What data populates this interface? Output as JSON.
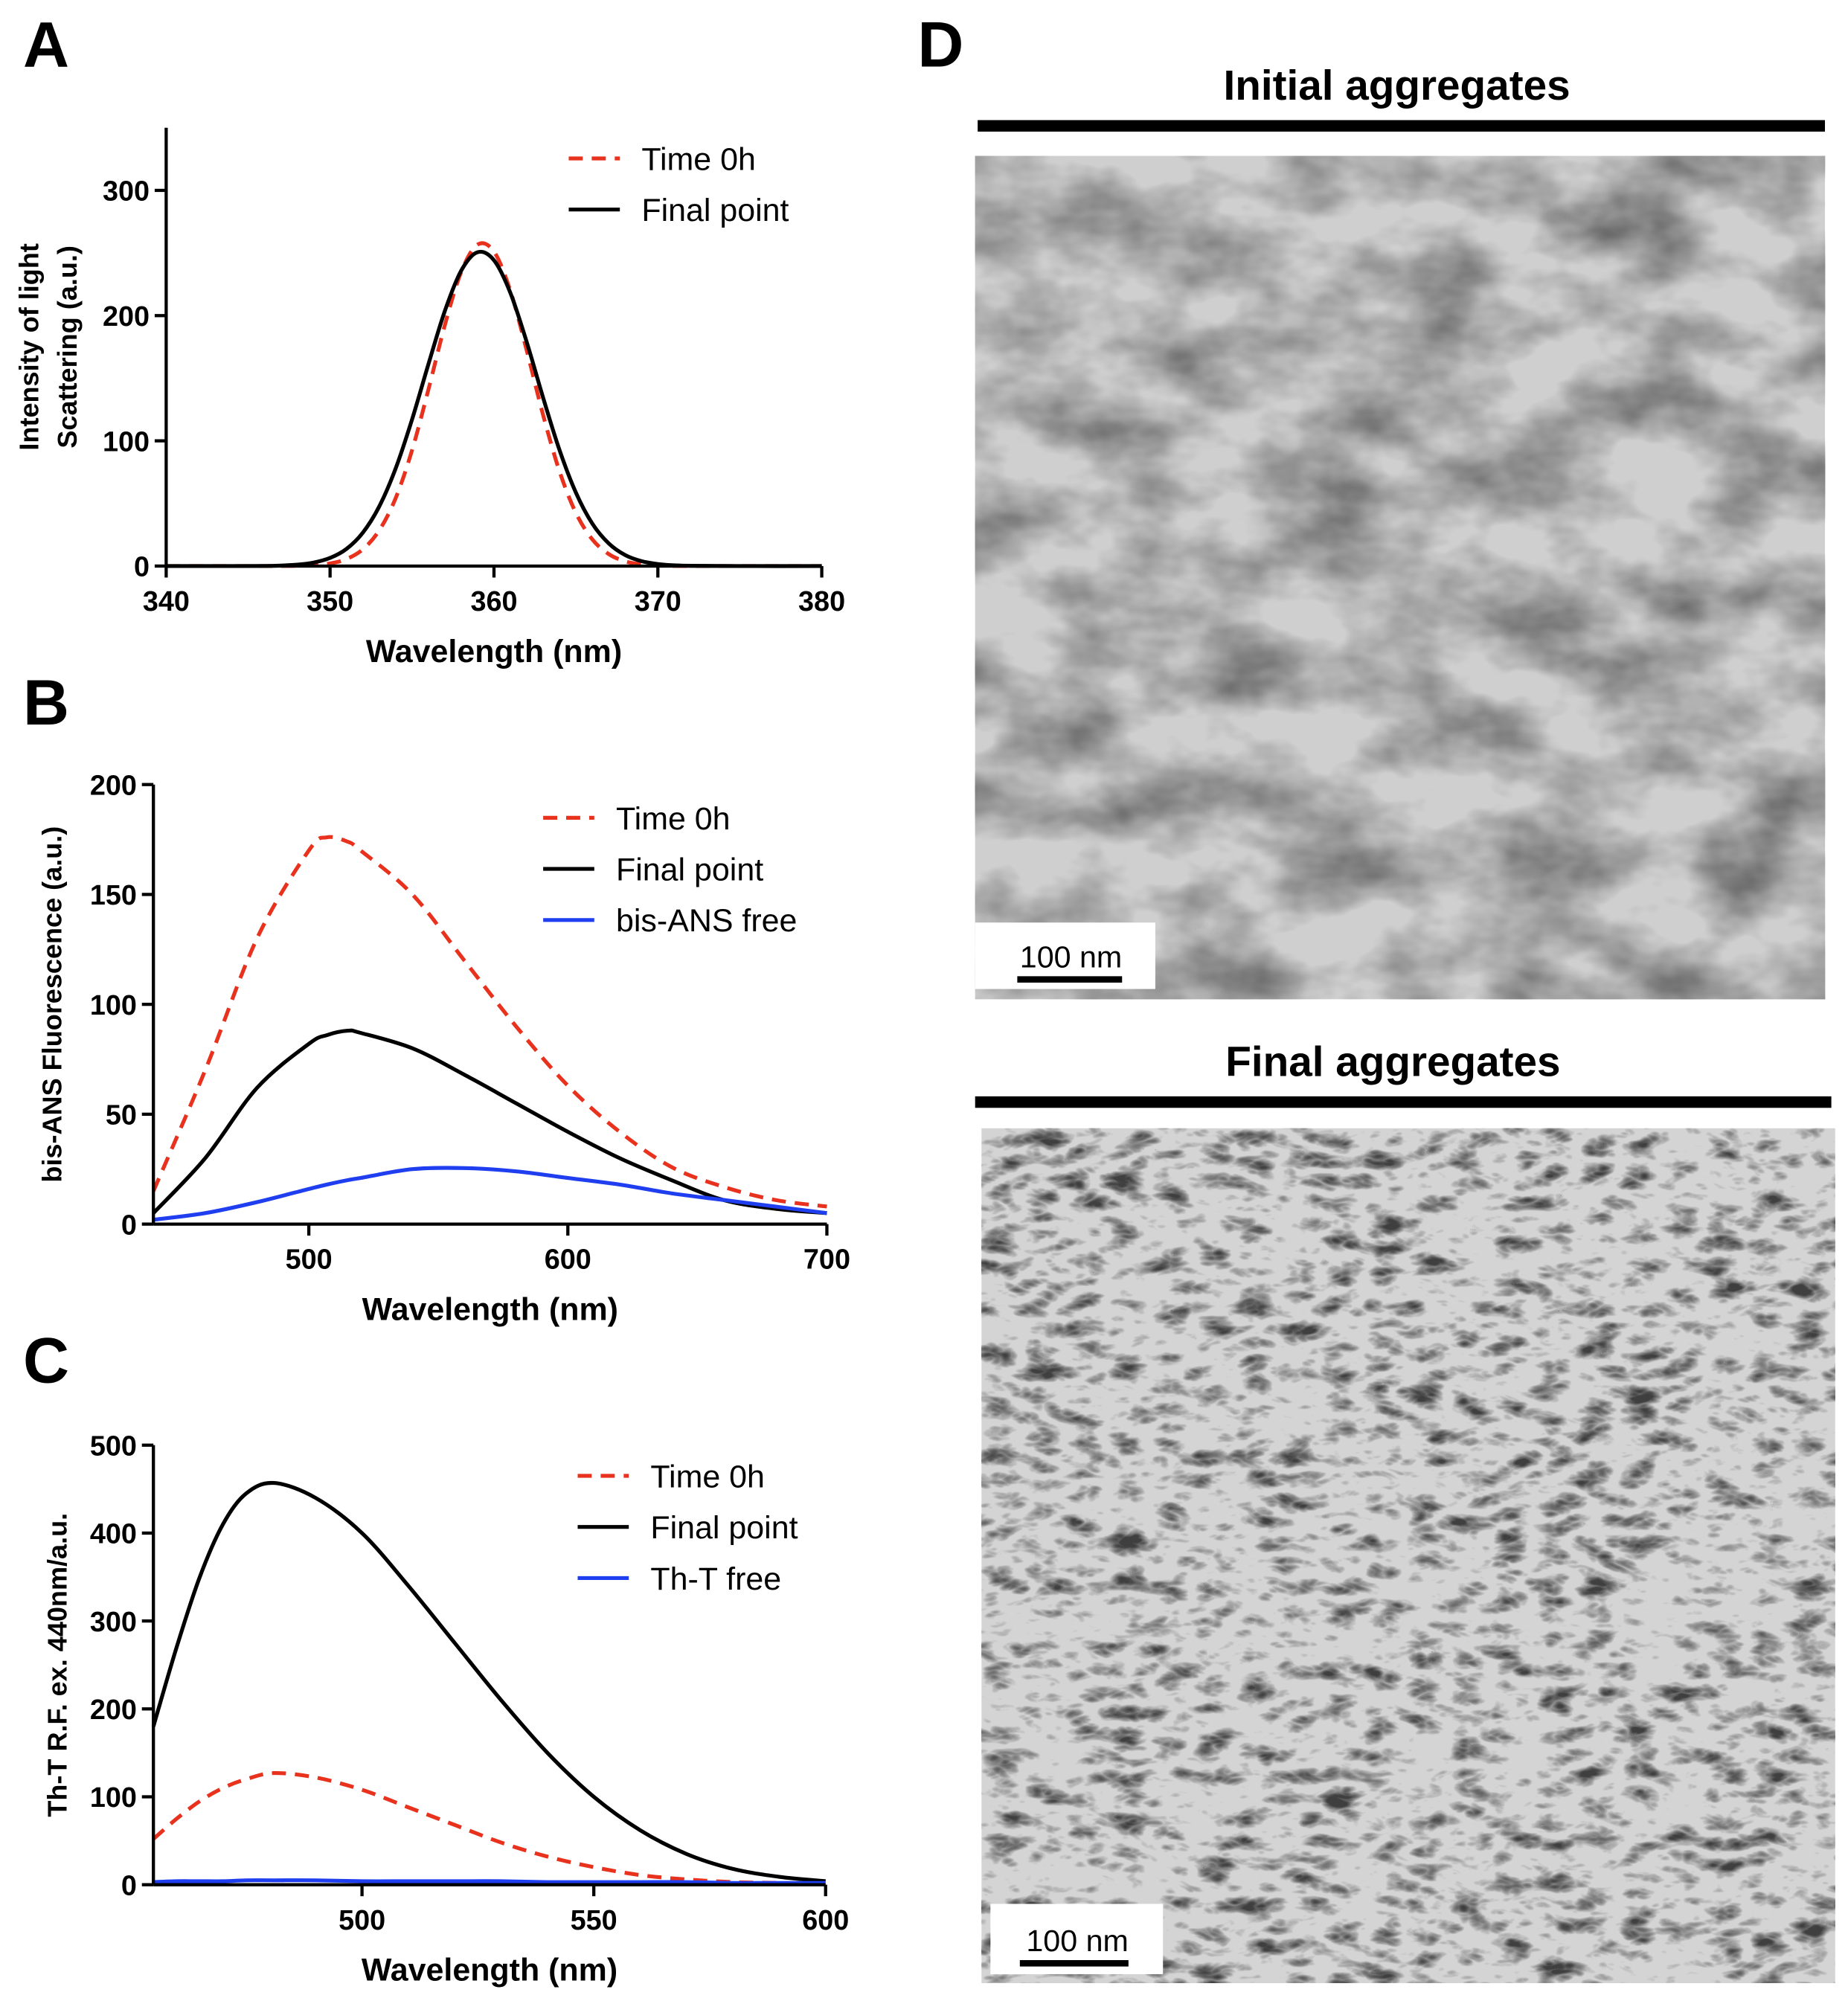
{
  "panel_labels": [
    "A",
    "B",
    "C",
    "D"
  ],
  "chart_data": [
    {
      "type": "line",
      "xlabel": "Wavelength (nm)",
      "ylabel": [
        "Intensity of light",
        "Scattering (a.u.)"
      ],
      "xlim": [
        340,
        380
      ],
      "ylim": [
        0,
        350
      ],
      "xticks": [
        340,
        350,
        360,
        370,
        380
      ],
      "yticks": [
        0,
        100,
        200,
        300
      ],
      "legend": "upper right",
      "x": [
        340,
        343,
        346,
        347,
        348,
        349,
        350,
        351,
        352,
        353,
        354,
        355,
        356,
        357,
        358,
        359,
        360,
        361,
        362,
        363,
        364,
        365,
        366,
        367,
        368,
        369,
        370,
        371,
        372,
        375,
        380
      ],
      "series": [
        {
          "name": "Time 0h",
          "color": "#e8321e",
          "style": "dashed",
          "values": [
            0,
            0,
            0,
            0.1,
            0.2,
            0.7,
            2.1,
            5.6,
            13.4,
            28.5,
            54.2,
            92.4,
            140.9,
            192.3,
            234.8,
            256.7,
            251.1,
            219.8,
            172.1,
            120.5,
            75.6,
            42.4,
            21.3,
            9.6,
            3.8,
            1.4,
            0.4,
            0.1,
            0,
            0,
            0
          ]
        },
        {
          "name": "Final point",
          "color": "#000000",
          "style": "solid",
          "values": [
            0,
            0,
            0.1,
            0.4,
            1.1,
            2.8,
            6.5,
            13.7,
            26.7,
            47.6,
            77.9,
            117,
            161.2,
            203.6,
            235.9,
            250.6,
            244.2,
            218.2,
            178.8,
            134.4,
            92.6,
            58.6,
            33.9,
            18.1,
            8.8,
            3.9,
            1.6,
            0.6,
            0.2,
            0,
            0
          ]
        }
      ]
    },
    {
      "type": "line",
      "xlabel": "Wavelength (nm)",
      "ylabel": [
        "bis-ANS Fluorescence (a.u.)"
      ],
      "xlim": [
        440,
        700
      ],
      "ylim": [
        0,
        200
      ],
      "xticks": [
        500,
        600,
        700
      ],
      "yticks": [
        0,
        50,
        100,
        150,
        200
      ],
      "legend": "upper right",
      "x": [
        440,
        460,
        480,
        500,
        507,
        515,
        520,
        540,
        560,
        580,
        600,
        620,
        640,
        660,
        680,
        700
      ],
      "series": [
        {
          "name": "Time 0h",
          "color": "#e8321e",
          "style": "dashed",
          "values": [
            15,
            70,
            130,
            170,
            176,
            174,
            170,
            150,
            120,
            90,
            63,
            42,
            26,
            17,
            11,
            8
          ]
        },
        {
          "name": "Final point",
          "color": "#000000",
          "style": "solid",
          "values": [
            5,
            30,
            62,
            82,
            86,
            88,
            87,
            80,
            68,
            55,
            42,
            30,
            20,
            11,
            7,
            5
          ]
        },
        {
          "name": "bis-ANS free",
          "color": "#1f3ef0",
          "style": "solid",
          "values": [
            2,
            5,
            10,
            16,
            18,
            20,
            21,
            25,
            25.5,
            24,
            21,
            18,
            14,
            11,
            8,
            5
          ]
        }
      ]
    },
    {
      "type": "line",
      "xlabel": "Wavelength (nm)",
      "ylabel": [
        "Th-T R.F. ex. 440nm/a.u."
      ],
      "xlim": [
        455,
        600
      ],
      "ylim": [
        0,
        500
      ],
      "xticks": [
        500,
        550,
        600
      ],
      "yticks": [
        0,
        100,
        200,
        300,
        400,
        500
      ],
      "legend": "upper right",
      "x": [
        455,
        460,
        465,
        470,
        475,
        481,
        490,
        500,
        510,
        520,
        530,
        540,
        550,
        560,
        570,
        580,
        590,
        600
      ],
      "series": [
        {
          "name": "Time 0h",
          "color": "#e8321e",
          "style": "dashed",
          "values": [
            52,
            75,
            95,
            110,
            120,
            127,
            122,
            108,
            88,
            68,
            48,
            32,
            20,
            11,
            6,
            3,
            2,
            1
          ]
        },
        {
          "name": "Final point",
          "color": "#000000",
          "style": "solid",
          "values": [
            180,
            270,
            350,
            410,
            445,
            457,
            440,
            400,
            340,
            275,
            210,
            150,
            100,
            62,
            35,
            18,
            9,
            4
          ]
        },
        {
          "name": "Th-T free",
          "color": "#1f3ef0",
          "style": "solid",
          "values": [
            3,
            4,
            4,
            4,
            5,
            5,
            5,
            4,
            4,
            4,
            4,
            3,
            3,
            3,
            3,
            2,
            2,
            2
          ]
        }
      ]
    }
  ],
  "micrographs": [
    {
      "title": "Initial aggregates",
      "scale_bar": "100 nm"
    },
    {
      "title": "Final aggregates",
      "scale_bar": "100 nm"
    }
  ]
}
